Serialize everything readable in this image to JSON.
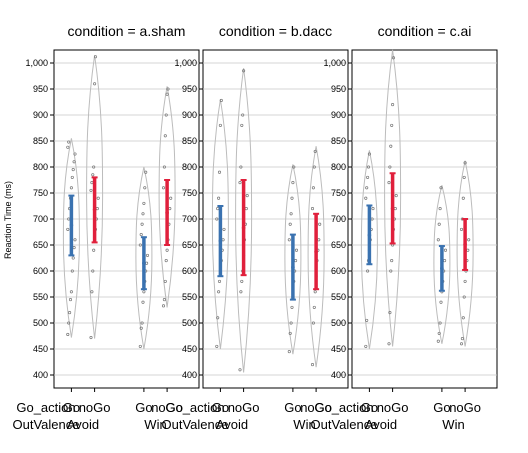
{
  "chart_data": {
    "type": "violin",
    "ylabel": "Reaction Time (ms)",
    "ylim": [
      375,
      1025
    ],
    "yticks": [
      400,
      450,
      500,
      550,
      600,
      650,
      700,
      750,
      800,
      850,
      900,
      950,
      1000
    ],
    "ytick_labels": [
      "400",
      "450",
      "500",
      "550",
      "600",
      "650",
      "700",
      "750",
      "800",
      "850",
      "900",
      "950",
      "1,000"
    ],
    "xlabel_lines": [
      "Go_action",
      "OutValence"
    ],
    "x_groups": [
      {
        "name": "Avoid",
        "levels": [
          "Go",
          "noGo"
        ]
      },
      {
        "name": "Win",
        "levels": [
          "Go",
          "noGo"
        ]
      }
    ],
    "colors": {
      "Go": "#3a72b0",
      "noGo": "#e0203c"
    },
    "panels": [
      {
        "title": "condition = a.sham",
        "groups": [
          {
            "group": "Avoid",
            "level": "Go",
            "lower": 630,
            "mean": 688,
            "upper": 745,
            "range": [
              472,
              855
            ],
            "points": [
              478,
              500,
              520,
              545,
              560,
              600,
              625,
              645,
              660,
              680,
              700,
              720,
              740,
              760,
              780,
              795,
              810,
              825,
              838,
              848
            ]
          },
          {
            "group": "Avoid",
            "level": "noGo",
            "lower": 655,
            "mean": 718,
            "upper": 780,
            "range": [
              470,
              1015
            ],
            "points": [
              472,
              560,
              600,
              640,
              660,
              680,
              700,
              720,
              740,
              755,
              770,
              785,
              800,
              960,
              1012
            ]
          },
          {
            "group": "Win",
            "level": "Go",
            "lower": 565,
            "mean": 615,
            "upper": 665,
            "range": [
              450,
              800
            ],
            "points": [
              455,
              490,
              500,
              540,
              560,
              580,
              600,
              615,
              630,
              650,
              670,
              690,
              710,
              730,
              760,
              790
            ]
          },
          {
            "group": "Win",
            "level": "noGo",
            "lower": 650,
            "mean": 712,
            "upper": 775,
            "range": [
              530,
              955
            ],
            "points": [
              533,
              545,
              580,
              620,
              640,
              660,
              690,
              720,
              740,
              760,
              800,
              860,
              900,
              940,
              950
            ]
          }
        ]
      },
      {
        "title": "condition = b.dacc",
        "groups": [
          {
            "group": "Avoid",
            "level": "Go",
            "lower": 590,
            "mean": 658,
            "upper": 725,
            "range": [
              450,
              930
            ],
            "points": [
              455,
              510,
              560,
              580,
              600,
              620,
              640,
              660,
              680,
              700,
              720,
              740,
              790,
              880,
              928
            ]
          },
          {
            "group": "Avoid",
            "level": "noGo",
            "lower": 592,
            "mean": 683,
            "upper": 775,
            "range": [
              405,
              990
            ],
            "points": [
              410,
              560,
              580,
              600,
              630,
              660,
              690,
              720,
              745,
              770,
              800,
              880,
              900,
              985
            ]
          },
          {
            "group": "Win",
            "level": "Go",
            "lower": 545,
            "mean": 607,
            "upper": 670,
            "range": [
              440,
              805
            ],
            "points": [
              445,
              480,
              500,
              530,
              550,
              580,
              600,
              620,
              640,
              660,
              690,
              710,
              740,
              770,
              800
            ]
          },
          {
            "group": "Win",
            "level": "noGo",
            "lower": 565,
            "mean": 637,
            "upper": 710,
            "range": [
              415,
              840
            ],
            "points": [
              420,
              500,
              530,
              560,
              590,
              620,
              640,
              660,
              690,
              720,
              760,
              800,
              830
            ]
          }
        ]
      },
      {
        "title": "condition = c.ai",
        "groups": [
          {
            "group": "Avoid",
            "level": "Go",
            "lower": 613,
            "mean": 669,
            "upper": 726,
            "range": [
              450,
              832
            ],
            "points": [
              455,
              505,
              600,
              620,
              640,
              660,
              680,
              700,
              720,
              740,
              760,
              780,
              800,
              825
            ]
          },
          {
            "group": "Avoid",
            "level": "noGo",
            "lower": 653,
            "mean": 720,
            "upper": 788,
            "range": [
              455,
              1025
            ],
            "points": [
              460,
              520,
              600,
              620,
              650,
              680,
              700,
              720,
              745,
              770,
              800,
              840,
              880,
              920,
              1010
            ]
          },
          {
            "group": "Win",
            "level": "Go",
            "lower": 562,
            "mean": 605,
            "upper": 648,
            "range": [
              460,
              765
            ],
            "points": [
              465,
              480,
              500,
              540,
              560,
              580,
              600,
              620,
              640,
              660,
              690,
              720,
              760
            ]
          },
          {
            "group": "Win",
            "level": "noGo",
            "lower": 602,
            "mean": 651,
            "upper": 700,
            "range": [
              455,
              812
            ],
            "points": [
              460,
              470,
              510,
              550,
              580,
              600,
              620,
              640,
              660,
              680,
              700,
              740,
              780,
              808
            ]
          }
        ]
      }
    ]
  }
}
